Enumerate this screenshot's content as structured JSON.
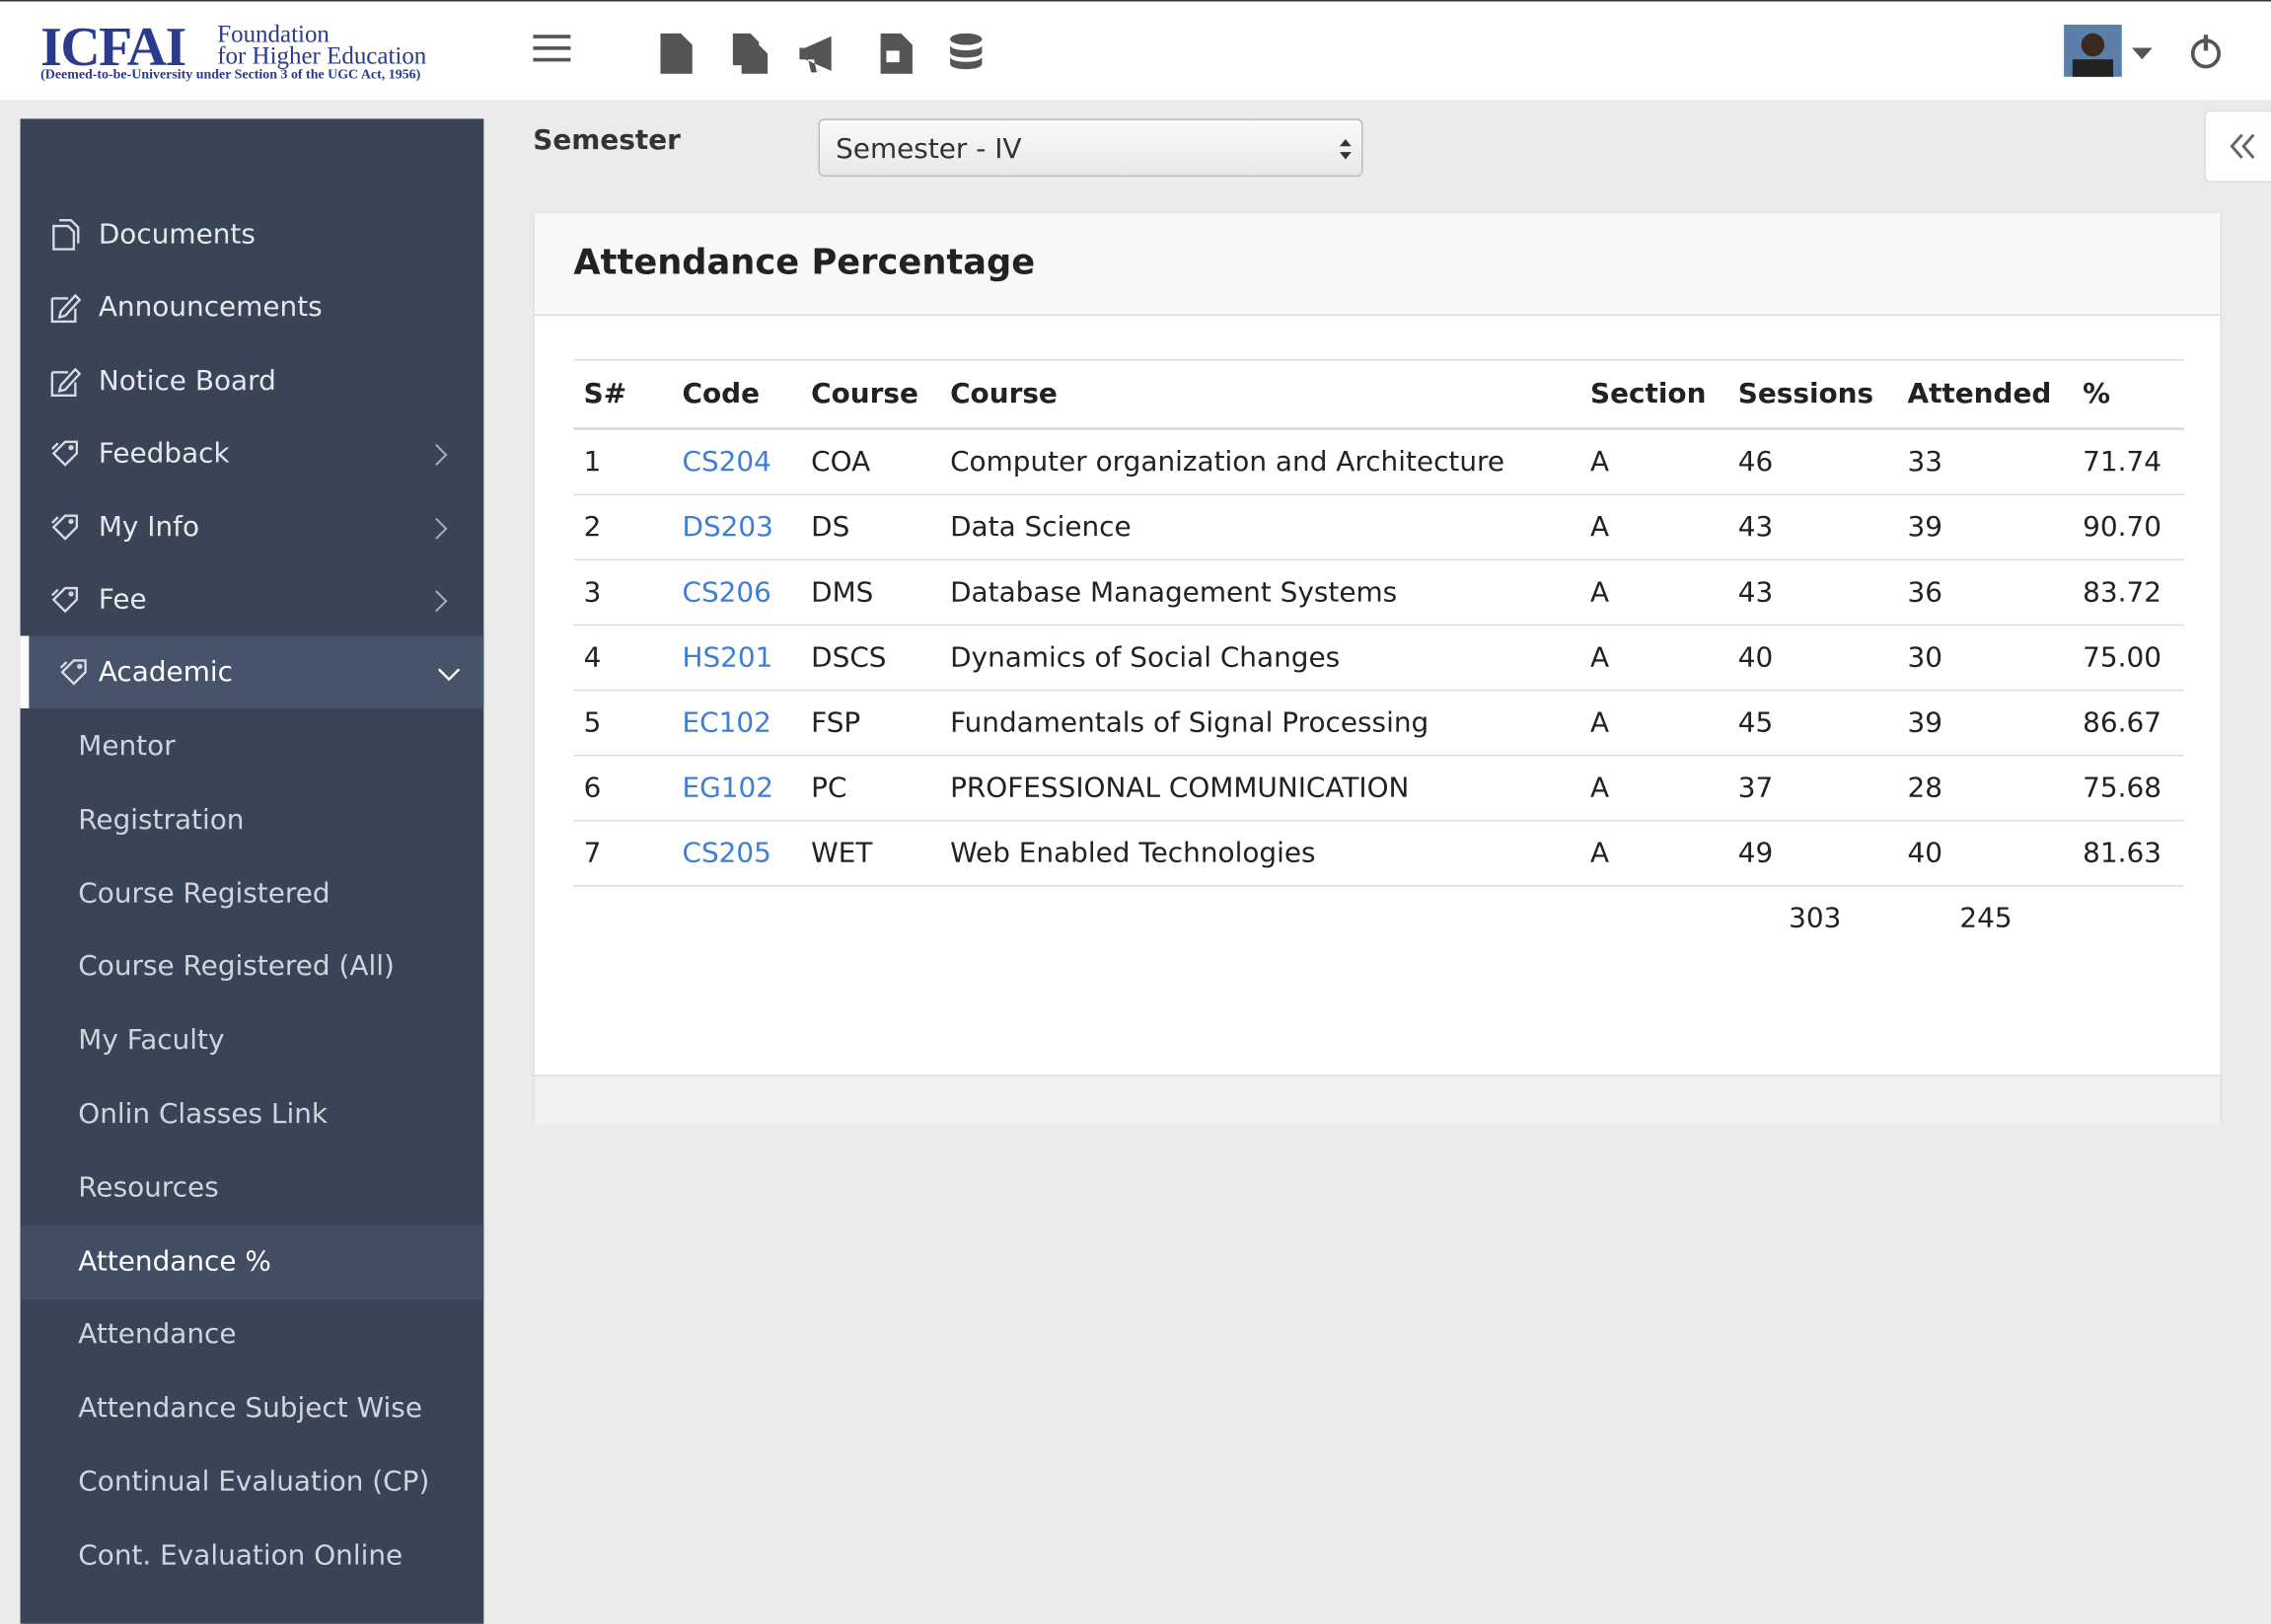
{
  "header": {
    "logo": {
      "name": "ICFAI",
      "line1": "Foundation",
      "line2": "for Higher Education",
      "tagline": "(Deemed-to-be-University under Section 3 of the UGC Act, 1956)"
    }
  },
  "sidebar": {
    "menu": [
      "Documents",
      "Announcements",
      "Notice Board",
      "Feedback",
      "My Info",
      "Fee",
      "Academic"
    ],
    "submenu": [
      "Mentor",
      "Registration",
      "Course Registered",
      "Course Registered (All)",
      "My Faculty",
      "Onlin Classes Link",
      "Resources",
      "Attendance %",
      "Attendance",
      "Attendance Subject Wise",
      "Continual Evaluation (CP)",
      "Cont. Evaluation Online"
    ]
  },
  "filter": {
    "label": "Semester",
    "selected": "Semester - IV"
  },
  "card": {
    "title": "Attendance Percentage"
  },
  "table": {
    "columns": [
      "S#",
      "Code",
      "Course",
      "Course",
      "Section",
      "Sessions",
      "Attended",
      "%"
    ],
    "rows": [
      [
        "1",
        "CS204",
        "COA",
        "Computer organization and Architecture",
        "A",
        "46",
        "33",
        "71.74"
      ],
      [
        "2",
        "DS203",
        "DS",
        "Data Science",
        "A",
        "43",
        "39",
        "90.70"
      ],
      [
        "3",
        "CS206",
        "DMS",
        "Database Management Systems",
        "A",
        "43",
        "36",
        "83.72"
      ],
      [
        "4",
        "HS201",
        "DSCS",
        "Dynamics of Social Changes",
        "A",
        "40",
        "30",
        "75.00"
      ],
      [
        "5",
        "EC102",
        "FSP",
        "Fundamentals of Signal Processing",
        "A",
        "45",
        "39",
        "86.67"
      ],
      [
        "6",
        "EG102",
        "PC",
        "PROFESSIONAL COMMUNICATION",
        "A",
        "37",
        "28",
        "75.68"
      ],
      [
        "7",
        "CS205",
        "WET",
        "Web Enabled Technologies",
        "A",
        "49",
        "40",
        "81.63"
      ]
    ],
    "totals": {
      "sessions": "303",
      "attended": "245"
    }
  }
}
